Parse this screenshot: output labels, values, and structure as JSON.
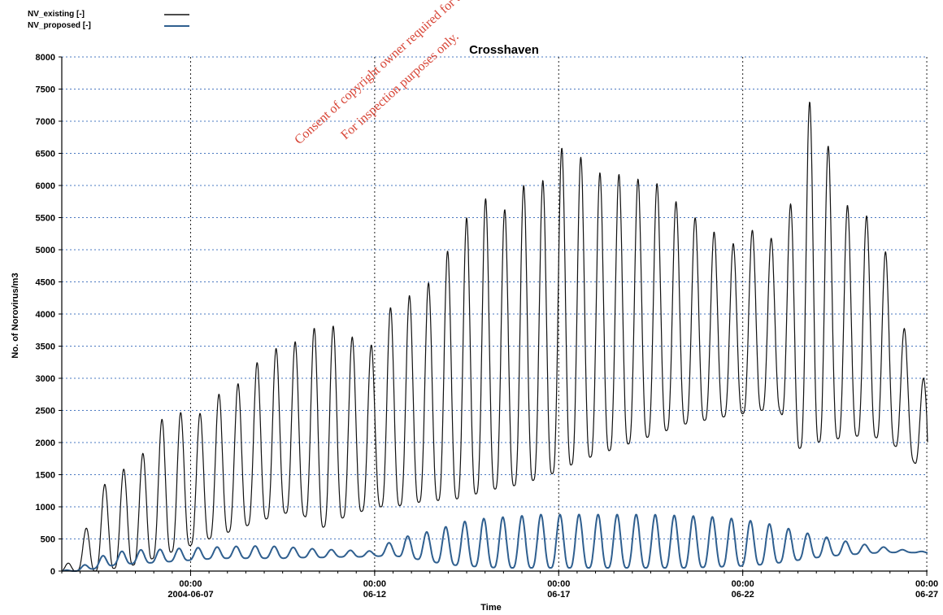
{
  "chart_data": {
    "type": "line",
    "title": "Crosshaven",
    "xlabel": "Time",
    "ylabel": "No. of Norovirus/m3",
    "ylim": [
      0,
      8000
    ],
    "xlim": [
      "2004-06-03T12:00",
      "2004-06-27T00:30"
    ],
    "y_ticks": [
      "0",
      "500",
      "1000",
      "1500",
      "2000",
      "2500",
      "3000",
      "3500",
      "4000",
      "4500",
      "5000",
      "5500",
      "6000",
      "6500",
      "7000",
      "7500",
      "8000"
    ],
    "x_ticks": [
      {
        "time": "2004-06-07T00:00",
        "line1": "00:00",
        "line2": "2004-06-07"
      },
      {
        "time": "2004-06-12T00:00",
        "line1": "00:00",
        "line2": "06-12"
      },
      {
        "time": "2004-06-17T00:00",
        "line1": "00:00",
        "line2": "06-17"
      },
      {
        "time": "2004-06-22T00:00",
        "line1": "00:00",
        "line2": "06-22"
      },
      {
        "time": "2004-06-27T00:00",
        "line1": "00:00",
        "line2": "06-27"
      }
    ],
    "grid": true,
    "legend_position": "top-left",
    "series": [
      {
        "name": "NV_existing",
        "legend_label": "NV_existing  [-]",
        "color": "#111111",
        "x": [
          "2004-06-03T12:00",
          "2004-06-04T00:00",
          "2004-06-04T12:00",
          "2004-06-05T00:00",
          "2004-06-05T12:00",
          "2004-06-06T00:00",
          "2004-06-06T12:00",
          "2004-06-07T00:00",
          "2004-06-07T12:00",
          "2004-06-08T00:00",
          "2004-06-08T12:00",
          "2004-06-09T00:00",
          "2004-06-09T12:00",
          "2004-06-10T00:00",
          "2004-06-10T12:00",
          "2004-06-11T00:00",
          "2004-06-11T12:00",
          "2004-06-12T00:00",
          "2004-06-12T12:00",
          "2004-06-13T00:00",
          "2004-06-13T12:00",
          "2004-06-14T00:00",
          "2004-06-14T12:00",
          "2004-06-15T00:00",
          "2004-06-15T12:00",
          "2004-06-16T00:00",
          "2004-06-16T12:00",
          "2004-06-17T00:00",
          "2004-06-17T12:00",
          "2004-06-18T00:00",
          "2004-06-18T12:00",
          "2004-06-19T00:00",
          "2004-06-19T12:00",
          "2004-06-20T00:00",
          "2004-06-20T12:00",
          "2004-06-21T00:00",
          "2004-06-21T12:00",
          "2004-06-22T00:00",
          "2004-06-22T12:00",
          "2004-06-23T00:00",
          "2004-06-23T12:00",
          "2004-06-24T00:00",
          "2004-06-24T12:00",
          "2004-06-25T00:00",
          "2004-06-25T12:00",
          "2004-06-26T00:00",
          "2004-06-26T12:00",
          "2004-06-27T00:00",
          "2004-06-27T00:30"
        ],
        "max": [
          0,
          400,
          1250,
          1550,
          1650,
          2100,
          2700,
          2200,
          2700,
          2800,
          3000,
          3400,
          3500,
          3600,
          3850,
          3800,
          3600,
          3500,
          4200,
          4300,
          4500,
          5000,
          5500,
          5800,
          5600,
          6000,
          6000,
          6600,
          6500,
          6200,
          6200,
          6100,
          6100,
          5900,
          5500,
          5500,
          5000,
          5200,
          5400,
          5000,
          6200,
          7950,
          5900,
          5600,
          5500,
          4800,
          3500,
          2900,
          2500
        ],
        "min": [
          0,
          0,
          0,
          50,
          100,
          200,
          300,
          400,
          500,
          600,
          700,
          800,
          900,
          900,
          650,
          800,
          900,
          1000,
          1000,
          1050,
          1100,
          1100,
          1150,
          1250,
          1300,
          1350,
          1450,
          1550,
          1700,
          1800,
          1900,
          2000,
          2100,
          2200,
          2300,
          2350,
          2400,
          2450,
          2500,
          2500,
          1900,
          2000,
          2050,
          2100,
          2100,
          2000,
          1800,
          1450,
          1500
        ]
      },
      {
        "name": "NV_proposed",
        "legend_label": "NV_proposed [-]",
        "color": "#2f5f8f",
        "x": [
          "2004-06-03T12:00",
          "2004-06-04T00:00",
          "2004-06-04T12:00",
          "2004-06-05T00:00",
          "2004-06-05T12:00",
          "2004-06-06T00:00",
          "2004-06-06T12:00",
          "2004-06-07T00:00",
          "2004-06-07T12:00",
          "2004-06-08T00:00",
          "2004-06-08T12:00",
          "2004-06-09T00:00",
          "2004-06-09T12:00",
          "2004-06-10T00:00",
          "2004-06-10T12:00",
          "2004-06-11T00:00",
          "2004-06-11T12:00",
          "2004-06-12T00:00",
          "2004-06-12T12:00",
          "2004-06-13T00:00",
          "2004-06-13T12:00",
          "2004-06-14T00:00",
          "2004-06-14T12:00",
          "2004-06-15T00:00",
          "2004-06-15T12:00",
          "2004-06-16T00:00",
          "2004-06-16T12:00",
          "2004-06-17T00:00",
          "2004-06-17T12:00",
          "2004-06-18T00:00",
          "2004-06-18T12:00",
          "2004-06-19T00:00",
          "2004-06-19T12:00",
          "2004-06-20T00:00",
          "2004-06-20T12:00",
          "2004-06-21T00:00",
          "2004-06-21T12:00",
          "2004-06-22T00:00",
          "2004-06-22T12:00",
          "2004-06-23T00:00",
          "2004-06-23T12:00",
          "2004-06-24T00:00",
          "2004-06-24T12:00",
          "2004-06-25T00:00",
          "2004-06-25T12:00",
          "2004-06-26T00:00",
          "2004-06-26T12:00",
          "2004-06-27T00:00",
          "2004-06-27T00:30"
        ],
        "max": [
          0,
          60,
          220,
          300,
          330,
          330,
          350,
          360,
          370,
          380,
          390,
          390,
          380,
          360,
          340,
          330,
          320,
          310,
          480,
          560,
          620,
          700,
          780,
          820,
          840,
          860,
          880,
          880,
          880,
          880,
          880,
          880,
          880,
          870,
          860,
          850,
          830,
          800,
          760,
          700,
          620,
          560,
          500,
          440,
          400,
          360,
          320,
          300,
          300
        ],
        "min": [
          0,
          0,
          50,
          100,
          120,
          130,
          150,
          170,
          190,
          200,
          200,
          200,
          200,
          210,
          210,
          220,
          220,
          230,
          240,
          200,
          150,
          100,
          80,
          60,
          50,
          50,
          50,
          50,
          50,
          50,
          50,
          50,
          50,
          50,
          50,
          60,
          70,
          80,
          100,
          130,
          170,
          210,
          240,
          260,
          280,
          290,
          290,
          280,
          280
        ]
      }
    ]
  },
  "watermark": {
    "line1": "For inspection purposes only.",
    "line2": "Consent of copyright owner required for any other use."
  }
}
